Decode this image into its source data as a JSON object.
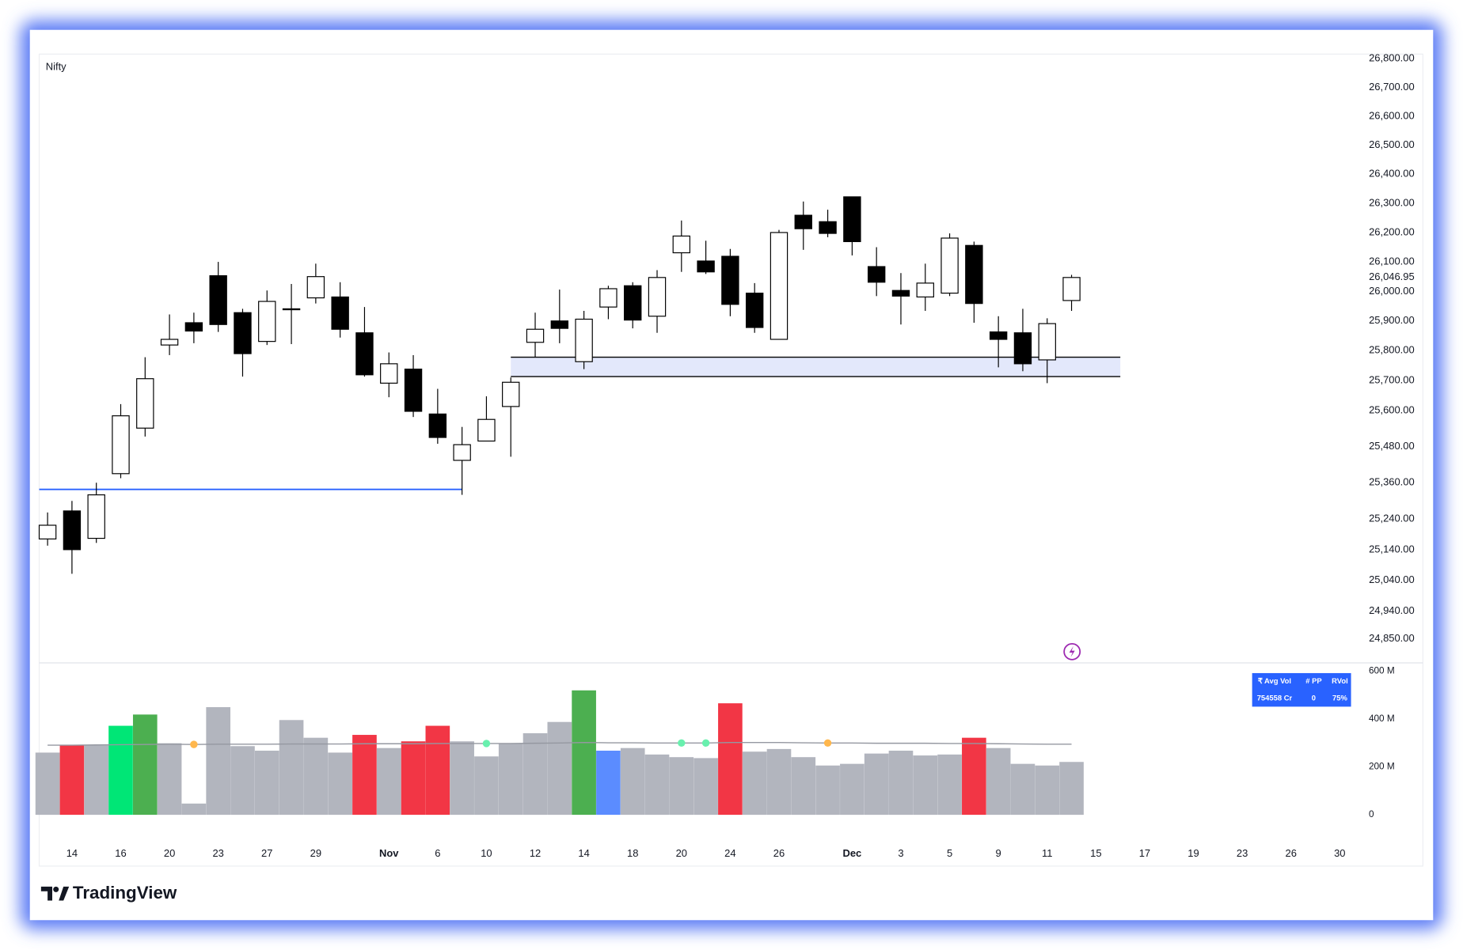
{
  "chart_data": {
    "type": "candlestick",
    "title": "Nifty",
    "brand": "TradingView",
    "categories": [
      null,
      "14",
      null,
      "16",
      null,
      "20",
      null,
      "23",
      null,
      "27",
      null,
      "29",
      null,
      null,
      "Nov",
      null,
      "6",
      null,
      "10",
      null,
      "12",
      null,
      "14",
      null,
      "18",
      null,
      "20",
      null,
      "24",
      null,
      "26",
      null,
      null,
      "Dec",
      null,
      "3",
      null,
      "5",
      null,
      "9",
      null,
      "11",
      null,
      "15",
      null,
      "17",
      null,
      "19",
      null,
      "23",
      null,
      "26",
      null,
      "30"
    ],
    "open": [
      25175,
      25267,
      25177,
      25390,
      25541,
      25819,
      25894,
      26053,
      25928,
      25831,
      25938,
      25978,
      25981,
      25860,
      25691,
      25738,
      25588,
      25434,
      25498,
      25613,
      25828,
      25900,
      25763,
      25947,
      26019,
      25916,
      26131,
      26103,
      26119,
      25994,
      25838,
      26259,
      26237,
      26322,
      26084,
      26003,
      25981,
      25994,
      26156,
      25863,
      25860,
      25769,
      25969,
      null,
      null,
      null,
      null,
      null,
      null,
      null,
      null,
      null,
      null,
      null
    ],
    "high": [
      25262,
      25300,
      25360,
      25621,
      25778,
      25922,
      25928,
      26100,
      25941,
      26003,
      26025,
      26094,
      26031,
      25947,
      25794,
      25785,
      25672,
      25545,
      25647,
      25710,
      25928,
      26006,
      25934,
      26019,
      26031,
      26072,
      26241,
      26172,
      26144,
      26028,
      26209,
      26306,
      26278,
      26322,
      26150,
      26062,
      26094,
      26197,
      26169,
      25916,
      25941,
      25909,
      26056,
      null,
      null,
      null,
      null,
      null,
      null,
      null,
      null,
      null,
      null,
      null
    ],
    "low": [
      25153,
      25061,
      25162,
      25375,
      25513,
      25785,
      25825,
      25863,
      25713,
      25819,
      25822,
      25959,
      25844,
      25713,
      25644,
      25578,
      25489,
      25320,
      25498,
      25446,
      25778,
      25825,
      25738,
      25906,
      25875,
      25860,
      26066,
      26059,
      25916,
      25860,
      25838,
      26141,
      26184,
      26122,
      25984,
      25888,
      25934,
      25984,
      25894,
      25744,
      25731,
      25691,
      25934,
      null,
      null,
      null,
      null,
      null,
      null,
      null,
      null,
      null,
      null,
      null
    ],
    "close": [
      25220,
      25140,
      25320,
      25582,
      25706,
      25838,
      25866,
      25888,
      25790,
      25966,
      25941,
      26050,
      25872,
      25719,
      25756,
      25597,
      25510,
      25486,
      25570,
      25694,
      25872,
      25875,
      25906,
      26009,
      25903,
      26047,
      26188,
      26066,
      25956,
      25878,
      26200,
      26213,
      26197,
      26169,
      26031,
      25984,
      26028,
      26181,
      25959,
      25838,
      25756,
      25891,
      26047,
      null,
      null,
      null,
      null,
      null,
      null,
      null,
      null,
      null,
      null,
      null
    ],
    "up_color": "#ffffff",
    "down_color": "#000000",
    "log_scale": true,
    "grid": false,
    "ylim": [
      24772,
      26816
    ],
    "yticks": [
      {
        "value": 26800,
        "label": "26,800.00"
      },
      {
        "value": 26700,
        "label": "26,700.00"
      },
      {
        "value": 26600,
        "label": "26,600.00"
      },
      {
        "value": 26500,
        "label": "26,500.00"
      },
      {
        "value": 26400,
        "label": "26,400.00"
      },
      {
        "value": 26300,
        "label": "26,300.00"
      },
      {
        "value": 26200,
        "label": "26,200.00"
      },
      {
        "value": 26100,
        "label": "26,100.00"
      },
      {
        "value": 26000,
        "label": "26,000.00"
      },
      {
        "value": 25900,
        "label": "25,900.00"
      },
      {
        "value": 25800,
        "label": "25,800.00"
      },
      {
        "value": 25700,
        "label": "25,700.00"
      },
      {
        "value": 25600,
        "label": "25,600.00"
      },
      {
        "value": 25480,
        "label": "25,480.00"
      },
      {
        "value": 25360,
        "label": "25,360.00"
      },
      {
        "value": 25240,
        "label": "25,240.00"
      },
      {
        "value": 25140,
        "label": "25,140.00"
      },
      {
        "value": 25040,
        "label": "25,040.00"
      },
      {
        "value": 24940,
        "label": "24,940.00"
      },
      {
        "value": 24850,
        "label": "24,850.00"
      }
    ],
    "last_price": {
      "value": 26046.95,
      "label": "26,046.95"
    },
    "level_line": {
      "value": 25338,
      "color": "#2962ff",
      "start": 0,
      "end": 17
    },
    "zone": {
      "low": 25713,
      "high": 25778,
      "start": 19,
      "end": 44,
      "color": "#e3e8fb"
    },
    "volume": {
      "values": [
        260,
        291,
        291,
        372,
        419,
        299,
        47,
        450,
        287,
        268,
        396,
        322,
        260,
        334,
        279,
        307,
        372,
        307,
        244,
        299,
        341,
        388,
        520,
        268,
        279,
        252,
        241,
        237,
        466,
        264,
        275,
        241,
        206,
        213,
        256,
        268,
        248,
        252,
        322,
        279,
        213,
        206,
        221,
        null,
        null,
        null,
        null,
        null,
        null,
        null,
        null,
        null,
        null,
        null
      ],
      "colors": [
        "#b2b5be",
        "#f23645",
        "#b2b5be",
        "#00e676",
        "#4caf50",
        "#b2b5be",
        "#b2b5be",
        "#b2b5be",
        "#b2b5be",
        "#b2b5be",
        "#b2b5be",
        "#b2b5be",
        "#b2b5be",
        "#f23645",
        "#b2b5be",
        "#f23645",
        "#f23645",
        "#b2b5be",
        "#b2b5be",
        "#b2b5be",
        "#b2b5be",
        "#b2b5be",
        "#4caf50",
        "#5b8cff",
        "#b2b5be",
        "#b2b5be",
        "#b2b5be",
        "#b2b5be",
        "#f23645",
        "#b2b5be",
        "#b2b5be",
        "#b2b5be",
        "#b2b5be",
        "#b2b5be",
        "#b2b5be",
        "#b2b5be",
        "#b2b5be",
        "#b2b5be",
        "#f23645",
        "#b2b5be",
        "#b2b5be",
        "#b2b5be",
        "#b2b5be",
        null,
        null,
        null,
        null,
        null,
        null,
        null,
        null,
        null,
        null,
        null
      ],
      "average": [
        291,
        291,
        292,
        293,
        294,
        295,
        294,
        295,
        295,
        295,
        296,
        296,
        296,
        297,
        297,
        297,
        298,
        298,
        298,
        298,
        299,
        300,
        302,
        301,
        301,
        300,
        300,
        300,
        302,
        302,
        302,
        301,
        300,
        300,
        299,
        299,
        299,
        298,
        298,
        297,
        296,
        295,
        295,
        null,
        null,
        null,
        null,
        null,
        null,
        null,
        null,
        null,
        null,
        null
      ],
      "average_color": "#9598a1",
      "signals": [
        {
          "index": 6,
          "color": "#ffb74d"
        },
        {
          "index": 18,
          "color": "#69f0ae"
        },
        {
          "index": 26,
          "color": "#69f0ae"
        },
        {
          "index": 27,
          "color": "#69f0ae"
        },
        {
          "index": 32,
          "color": "#ffb74d"
        }
      ],
      "ylim": [
        0,
        635
      ],
      "yticks": [
        {
          "value": 600,
          "label": "600 M"
        },
        {
          "value": 400,
          "label": "400 M"
        },
        {
          "value": 200,
          "label": "200 M"
        },
        0
      ]
    },
    "table": {
      "header": [
        "₹ Avg Vol",
        "# PP",
        "RVol"
      ],
      "row": [
        "754558 Cr",
        "0",
        "75%"
      ],
      "color": "#2962ff"
    }
  }
}
